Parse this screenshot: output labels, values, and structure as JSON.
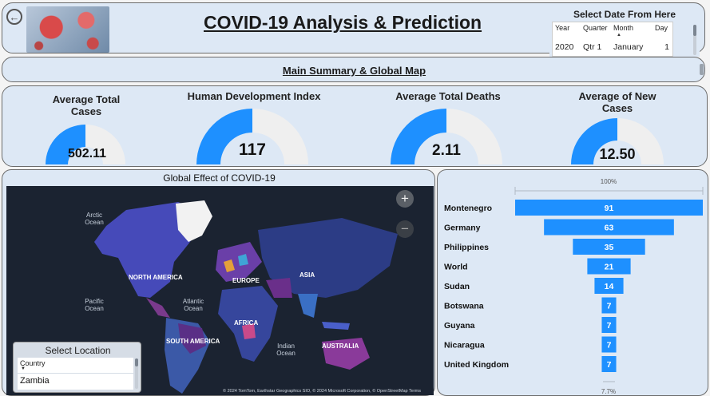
{
  "header": {
    "title": "COVID-19 Analysis & Prediction",
    "back_icon": "back-arrow-icon"
  },
  "date_slicer": {
    "title": "Select Date From Here",
    "columns": [
      "Year",
      "Quarter",
      "Month",
      "Day"
    ],
    "row": [
      "2020",
      "Qtr 1",
      "January",
      "1"
    ]
  },
  "nav": {
    "label": "Main Summary & Global Map"
  },
  "kpis": [
    {
      "title": "Average Total Cases",
      "value": "502.11",
      "fill": 0.5
    },
    {
      "title": "Human Development Index",
      "value": "117",
      "fill": 0.5
    },
    {
      "title": "Average Total Deaths",
      "value": "2.11",
      "fill": 0.5
    },
    {
      "title": "Average of New Cases",
      "value": "12.50",
      "fill": 0.5
    }
  ],
  "map": {
    "title": "Global Effect of COVID-19",
    "oceans": [
      "Arctic Ocean",
      "Pacific Ocean",
      "Atlantic Ocean",
      "Indian Ocean"
    ],
    "continents": [
      "NORTH AMERICA",
      "EUROPE",
      "ASIA",
      "AFRICA",
      "SOUTH AMERICA",
      "AUSTRALIA"
    ],
    "credit": "© 2024 TomTom, Earthstar Geographics SIO, © 2024 Microsoft Corporation, © OpenStreetMap  Terms",
    "zoom_in": "+",
    "zoom_out": "−"
  },
  "location_slicer": {
    "title": "Select Location",
    "header": "Country",
    "value": "Zambia"
  },
  "chart_data": {
    "type": "funnel",
    "top_label": "100%",
    "bottom_label": "7.7%",
    "categories": [
      "Montenegro",
      "Germany",
      "Philippines",
      "World",
      "Sudan",
      "Botswana",
      "Guyana",
      "Nicaragua",
      "United Kingdom"
    ],
    "values": [
      91,
      63,
      35,
      21,
      14,
      7,
      7,
      7,
      7
    ],
    "bar_color": "#1e90ff"
  },
  "colors": {
    "panel_bg": "#dde8f5",
    "gauge_fill": "#1e90ff",
    "gauge_track": "#efefef",
    "map_bg": "#1b2331"
  }
}
